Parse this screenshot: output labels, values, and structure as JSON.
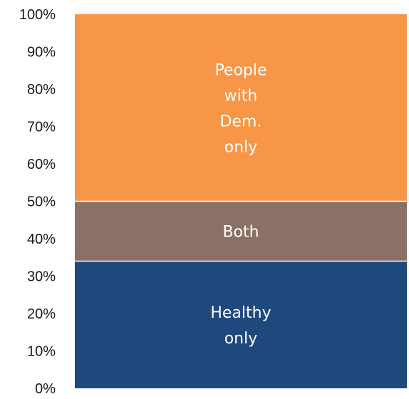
{
  "chart_data": {
    "type": "bar",
    "stacked": true,
    "categories": [
      ""
    ],
    "series": [
      {
        "name": "Healthy only",
        "label_lines": [
          "Healthy",
          "only"
        ],
        "values": [
          34
        ],
        "color": "#1f497d"
      },
      {
        "name": "Both",
        "label_lines": [
          "Both"
        ],
        "values": [
          16
        ],
        "color": "#8b7065"
      },
      {
        "name": "People with Dem. only",
        "label_lines": [
          "People",
          "with",
          "Dem.",
          "only"
        ],
        "values": [
          50
        ],
        "color": "#f79646"
      }
    ],
    "title": "",
    "xlabel": "",
    "ylabel": "",
    "ylim": [
      0,
      100
    ],
    "y_ticks": [
      "0%",
      "10%",
      "20%",
      "30%",
      "40%",
      "50%",
      "60%",
      "70%",
      "80%",
      "90%",
      "100%"
    ],
    "grid": false,
    "legend": "none"
  }
}
